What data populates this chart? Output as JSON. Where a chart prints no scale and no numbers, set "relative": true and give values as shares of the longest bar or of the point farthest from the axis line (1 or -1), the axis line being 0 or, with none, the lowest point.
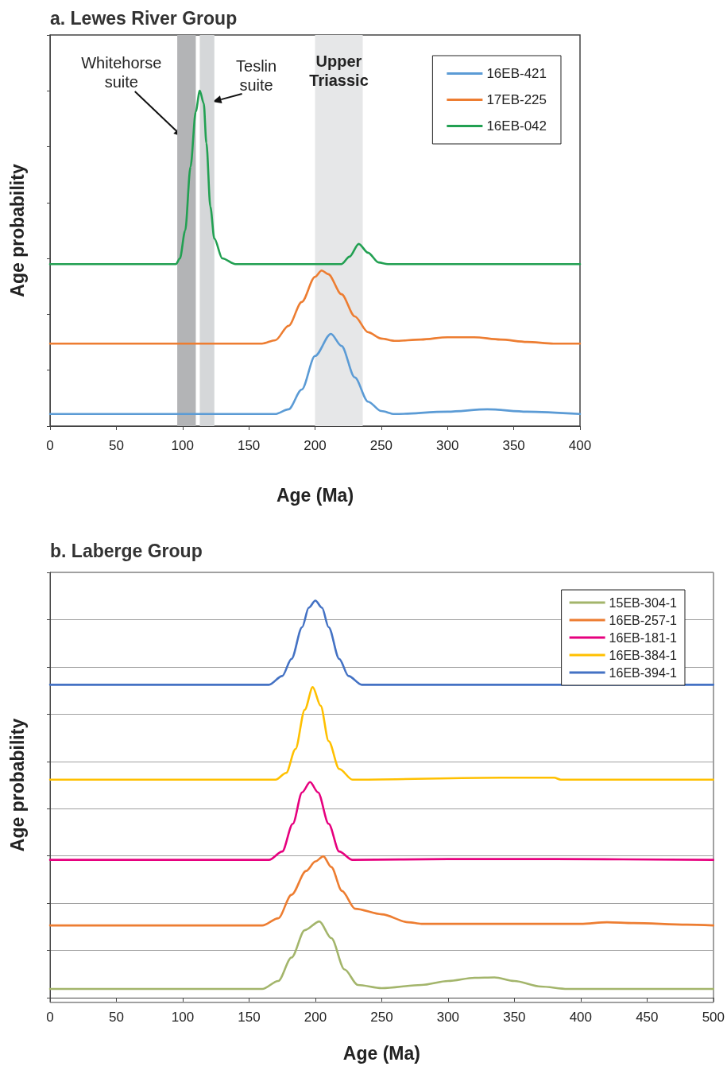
{
  "chart_data": [
    {
      "type": "line",
      "title": "a. Lewes River Group",
      "xlabel": "Age (Ma)",
      "ylabel": "Age probability",
      "relative": true,
      "xlim": [
        0,
        400
      ],
      "xticks": [
        0,
        50,
        100,
        150,
        200,
        250,
        300,
        350,
        400
      ],
      "legend": "top right",
      "grid": false,
      "marker": "none",
      "line_style": "solid",
      "bands": [
        {
          "axis": "x",
          "from": 96,
          "to": 110,
          "label": "Whitehorse\nsuite",
          "color": "#b3b4b6"
        },
        {
          "axis": "x",
          "from": 113,
          "to": 124,
          "label": "Teslin\nsuite",
          "color": "#d5d7d9"
        },
        {
          "axis": "x",
          "from": 200,
          "to": 236,
          "label": "Upper\nTriassic",
          "color": "#e6e7e8"
        }
      ],
      "series": [
        {
          "name": "16EB-421",
          "color": "#5b9bd5",
          "x": [
            0,
            170,
            180,
            190,
            200,
            212,
            220,
            230,
            240,
            250,
            260,
            300,
            330,
            360,
            400
          ],
          "values": [
            0.036,
            0.036,
            0.05,
            0.109,
            0.209,
            0.275,
            0.239,
            0.145,
            0.073,
            0.045,
            0.036,
            0.043,
            0.05,
            0.043,
            0.036
          ]
        },
        {
          "name": "17EB-225",
          "color": "#ed7d31",
          "x": [
            0,
            160,
            170,
            180,
            190,
            200,
            205,
            210,
            220,
            230,
            240,
            250,
            260,
            280,
            300,
            320,
            340,
            360,
            380,
            400
          ],
          "values": [
            0.246,
            0.246,
            0.256,
            0.299,
            0.37,
            0.445,
            0.464,
            0.453,
            0.393,
            0.327,
            0.28,
            0.261,
            0.254,
            0.258,
            0.265,
            0.265,
            0.258,
            0.251,
            0.246,
            0.246
          ]
        },
        {
          "name": "16EB-042",
          "color": "#22a052",
          "x": [
            0,
            95,
            98,
            102,
            106,
            110,
            113,
            116,
            118,
            121,
            124,
            130,
            140,
            220,
            226,
            233,
            240,
            248,
            255,
            400
          ],
          "values": [
            0.483,
            0.483,
            0.5,
            0.583,
            0.773,
            0.938,
            1,
            0.962,
            0.844,
            0.654,
            0.559,
            0.5,
            0.483,
            0.483,
            0.505,
            0.543,
            0.517,
            0.488,
            0.483,
            0.483
          ]
        }
      ]
    },
    {
      "type": "line",
      "title": "b. Laberge Group",
      "xlabel": "Age (Ma)",
      "ylabel": "Age probability",
      "relative": true,
      "xlim": [
        0,
        500
      ],
      "xticks": [
        0,
        50,
        100,
        150,
        200,
        250,
        300,
        350,
        400,
        450,
        500
      ],
      "legend": "top right",
      "grid": "y",
      "marker": "none",
      "line_style": "solid",
      "series": [
        {
          "name": "15EB-304-1",
          "color": "#a3b56b",
          "x": [
            0,
            160,
            172,
            182,
            192,
            203,
            212,
            222,
            232,
            250,
            280,
            300,
            320,
            335,
            350,
            370,
            390,
            500
          ],
          "values": [
            0.022,
            0.022,
            0.042,
            0.101,
            0.17,
            0.192,
            0.15,
            0.071,
            0.032,
            0.024,
            0.032,
            0.042,
            0.05,
            0.051,
            0.042,
            0.028,
            0.022,
            0.022
          ]
        },
        {
          "name": "16EB-257-1",
          "color": "#ed7d31",
          "x": [
            0,
            160,
            172,
            182,
            193,
            200,
            206,
            212,
            220,
            230,
            250,
            270,
            280,
            400,
            420,
            440,
            480,
            500
          ],
          "values": [
            0.182,
            0.182,
            0.2,
            0.259,
            0.319,
            0.343,
            0.356,
            0.329,
            0.269,
            0.224,
            0.21,
            0.19,
            0.186,
            0.186,
            0.19,
            0.188,
            0.184,
            0.182
          ]
        },
        {
          "name": "16EB-181-1",
          "color": "#e6007e",
          "x": [
            0,
            165,
            175,
            183,
            190,
            196,
            202,
            210,
            218,
            228,
            300,
            380,
            500
          ],
          "values": [
            0.347,
            0.347,
            0.368,
            0.438,
            0.517,
            0.543,
            0.517,
            0.438,
            0.368,
            0.347,
            0.349,
            0.349,
            0.347
          ]
        },
        {
          "name": "16EB-384-1",
          "color": "#ffc000",
          "x": [
            0,
            170,
            178,
            185,
            192,
            198,
            204,
            210,
            218,
            228,
            340,
            380,
            385,
            500
          ],
          "values": [
            0.549,
            0.549,
            0.566,
            0.626,
            0.725,
            0.782,
            0.735,
            0.646,
            0.576,
            0.549,
            0.554,
            0.554,
            0.549,
            0.549
          ]
        },
        {
          "name": "16EB-394-1",
          "color": "#4472c4",
          "x": [
            0,
            165,
            175,
            182,
            190,
            195,
            200,
            205,
            210,
            218,
            225,
            235,
            500
          ],
          "values": [
            0.788,
            0.788,
            0.81,
            0.853,
            0.933,
            0.982,
            1,
            0.982,
            0.933,
            0.853,
            0.81,
            0.788,
            0.788
          ]
        }
      ]
    }
  ]
}
